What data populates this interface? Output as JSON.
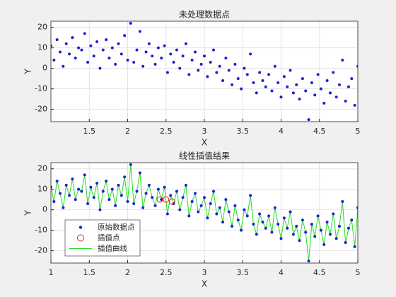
{
  "chart_data": [
    {
      "type": "scatter",
      "title": "未处理数据点",
      "xlabel": "X",
      "ylabel": "Y",
      "xlim": [
        1,
        5
      ],
      "ylim": [
        -26,
        23
      ],
      "xticks": [
        1.5,
        2,
        2.5,
        3,
        3.5,
        4,
        4.5,
        5
      ],
      "yticks": [
        -20,
        -10,
        0,
        10,
        20
      ],
      "grid": true,
      "series": [
        {
          "mode": "markers",
          "marker": "dot",
          "color": "#1f1fd6",
          "x": [
            1,
            1.04,
            1.08,
            1.12,
            1.16,
            1.2,
            1.24,
            1.28,
            1.32,
            1.36,
            1.4,
            1.44,
            1.48,
            1.52,
            1.56,
            1.6,
            1.64,
            1.68,
            1.72,
            1.76,
            1.8,
            1.84,
            1.88,
            1.92,
            1.96,
            2,
            2.04,
            2.08,
            2.12,
            2.16,
            2.2,
            2.24,
            2.28,
            2.32,
            2.36,
            2.4,
            2.44,
            2.48,
            2.52,
            2.56,
            2.6,
            2.64,
            2.68,
            2.72,
            2.76,
            2.8,
            2.84,
            2.88,
            2.92,
            2.96,
            3,
            3.04,
            3.08,
            3.12,
            3.16,
            3.2,
            3.24,
            3.28,
            3.32,
            3.36,
            3.4,
            3.44,
            3.48,
            3.52,
            3.56,
            3.6,
            3.64,
            3.68,
            3.72,
            3.76,
            3.8,
            3.84,
            3.88,
            3.92,
            3.96,
            4,
            4.04,
            4.08,
            4.12,
            4.16,
            4.2,
            4.24,
            4.28,
            4.32,
            4.36,
            4.4,
            4.44,
            4.48,
            4.52,
            4.56,
            4.6,
            4.64,
            4.68,
            4.72,
            4.76,
            4.8,
            4.84,
            4.88,
            4.92,
            4.96,
            5
          ],
          "values": [
            11,
            4,
            14,
            8,
            1,
            12,
            7,
            15,
            5,
            10,
            9,
            17,
            3,
            11,
            6,
            13,
            0,
            9,
            14,
            5,
            10,
            2,
            12,
            7,
            16,
            4,
            22,
            3,
            9,
            18,
            1,
            8,
            12,
            6,
            2,
            10,
            5,
            11,
            -2,
            7,
            3,
            9,
            0,
            6,
            12,
            -3,
            4,
            8,
            -1,
            2,
            6,
            -4,
            3,
            9,
            -2,
            1,
            -6,
            5,
            -1,
            -8,
            2,
            -5,
            -10,
            0,
            -3,
            7,
            -7,
            -12,
            -2,
            -6,
            -9,
            -3,
            -11,
            1,
            -7,
            -14,
            -4,
            -9,
            -1,
            -12,
            -8,
            -15,
            -5,
            -11,
            -25,
            -7,
            -13,
            -3,
            -10,
            -17,
            -6,
            -12,
            -2,
            -14,
            -8,
            4,
            -16,
            -9,
            -5,
            -18,
            1
          ]
        }
      ]
    },
    {
      "type": "scatter",
      "title": "线性插值结果",
      "xlabel": "X",
      "ylabel": "Y",
      "xlim": [
        1,
        5
      ],
      "ylim": [
        -26,
        23
      ],
      "xticks": [
        1,
        1.5,
        2,
        2.5,
        3,
        3.5,
        4,
        4.5,
        5
      ],
      "yticks": [
        -20,
        -10,
        0,
        10,
        20
      ],
      "grid": true,
      "legend": "southwest",
      "series": [
        {
          "name": "原始数据点",
          "mode": "markers",
          "marker": "dot",
          "color": "#1f1fd6",
          "x": [
            1,
            1.04,
            1.08,
            1.12,
            1.16,
            1.2,
            1.24,
            1.28,
            1.32,
            1.36,
            1.4,
            1.44,
            1.48,
            1.52,
            1.56,
            1.6,
            1.64,
            1.68,
            1.72,
            1.76,
            1.8,
            1.84,
            1.88,
            1.92,
            1.96,
            2,
            2.04,
            2.08,
            2.12,
            2.16,
            2.2,
            2.24,
            2.28,
            2.32,
            2.36,
            2.4,
            2.44,
            2.48,
            2.52,
            2.56,
            2.6,
            2.64,
            2.68,
            2.72,
            2.76,
            2.8,
            2.84,
            2.88,
            2.92,
            2.96,
            3,
            3.04,
            3.08,
            3.12,
            3.16,
            3.2,
            3.24,
            3.28,
            3.32,
            3.36,
            3.4,
            3.44,
            3.48,
            3.52,
            3.56,
            3.6,
            3.64,
            3.68,
            3.72,
            3.76,
            3.8,
            3.84,
            3.88,
            3.92,
            3.96,
            4,
            4.04,
            4.08,
            4.12,
            4.16,
            4.2,
            4.24,
            4.28,
            4.32,
            4.36,
            4.4,
            4.44,
            4.48,
            4.52,
            4.56,
            4.6,
            4.64,
            4.68,
            4.72,
            4.76,
            4.8,
            4.84,
            4.88,
            4.92,
            4.96,
            5
          ],
          "values": [
            11,
            4,
            14,
            8,
            1,
            12,
            7,
            15,
            5,
            10,
            9,
            17,
            3,
            11,
            6,
            13,
            0,
            9,
            14,
            5,
            10,
            2,
            12,
            7,
            16,
            4,
            22,
            3,
            9,
            18,
            1,
            8,
            12,
            6,
            2,
            10,
            5,
            11,
            -2,
            7,
            3,
            9,
            0,
            6,
            12,
            -3,
            4,
            8,
            -1,
            2,
            6,
            -4,
            3,
            9,
            -2,
            1,
            -6,
            5,
            -1,
            -8,
            2,
            -5,
            -10,
            0,
            -3,
            7,
            -7,
            -12,
            -2,
            -6,
            -9,
            -3,
            -11,
            1,
            -7,
            -14,
            -4,
            -9,
            -1,
            -12,
            -8,
            -15,
            -5,
            -11,
            -25,
            -7,
            -13,
            -3,
            -10,
            -17,
            -6,
            -12,
            -2,
            -14,
            -8,
            4,
            -16,
            -9,
            -5,
            -18,
            1
          ]
        },
        {
          "name": "插值点",
          "mode": "markers",
          "marker": "circle",
          "color": "#e02020",
          "x": [
            2.42,
            2.5,
            2.58
          ],
          "values": [
            5,
            5,
            4
          ]
        },
        {
          "name": "插值曲线",
          "mode": "lines",
          "color": "#22dd22",
          "x": [
            1,
            1.04,
            1.08,
            1.12,
            1.16,
            1.2,
            1.24,
            1.28,
            1.32,
            1.36,
            1.4,
            1.44,
            1.48,
            1.52,
            1.56,
            1.6,
            1.64,
            1.68,
            1.72,
            1.76,
            1.8,
            1.84,
            1.88,
            1.92,
            1.96,
            2,
            2.04,
            2.08,
            2.12,
            2.16,
            2.2,
            2.24,
            2.28,
            2.32,
            2.36,
            2.4,
            2.44,
            2.48,
            2.52,
            2.56,
            2.6,
            2.64,
            2.68,
            2.72,
            2.76,
            2.8,
            2.84,
            2.88,
            2.92,
            2.96,
            3,
            3.04,
            3.08,
            3.12,
            3.16,
            3.2,
            3.24,
            3.28,
            3.32,
            3.36,
            3.4,
            3.44,
            3.48,
            3.52,
            3.56,
            3.6,
            3.64,
            3.68,
            3.72,
            3.76,
            3.8,
            3.84,
            3.88,
            3.92,
            3.96,
            4,
            4.04,
            4.08,
            4.12,
            4.16,
            4.2,
            4.24,
            4.28,
            4.32,
            4.36,
            4.4,
            4.44,
            4.48,
            4.52,
            4.56,
            4.6,
            4.64,
            4.68,
            4.72,
            4.76,
            4.8,
            4.84,
            4.88,
            4.92,
            4.96,
            5
          ],
          "values": [
            11,
            4,
            14,
            8,
            1,
            12,
            7,
            15,
            5,
            10,
            9,
            17,
            3,
            11,
            6,
            13,
            0,
            9,
            14,
            5,
            10,
            2,
            12,
            7,
            16,
            4,
            22,
            3,
            9,
            18,
            1,
            8,
            12,
            6,
            2,
            10,
            5,
            11,
            -2,
            7,
            3,
            9,
            0,
            6,
            12,
            -3,
            4,
            8,
            -1,
            2,
            6,
            -4,
            3,
            9,
            -2,
            1,
            -6,
            5,
            -1,
            -8,
            2,
            -5,
            -10,
            0,
            -3,
            7,
            -7,
            -12,
            -2,
            -6,
            -9,
            -3,
            -11,
            1,
            -7,
            -14,
            -4,
            -9,
            -1,
            -12,
            -8,
            -15,
            -5,
            -11,
            -25,
            -7,
            -13,
            -3,
            -10,
            -17,
            -6,
            -12,
            -2,
            -14,
            -8,
            4,
            -16,
            -9,
            -5,
            -18,
            1
          ]
        }
      ]
    }
  ]
}
